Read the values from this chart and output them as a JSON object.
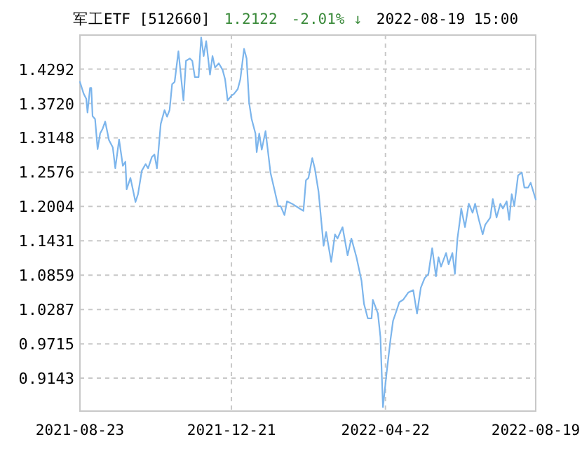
{
  "chart_data": {
    "type": "line",
    "title": "军工ETF [512660]",
    "annotations": [
      "1.2122",
      "-2.01% ↓",
      "2022-08-19 15:00"
    ],
    "x": [
      "2021-08-23",
      "2021-08-26",
      "2021-08-28",
      "2021-08-29",
      "2021-08-31",
      "2021-09-01",
      "2021-09-02",
      "2021-09-04",
      "2021-09-06",
      "2021-09-08",
      "2021-09-10",
      "2021-09-12",
      "2021-09-15",
      "2021-09-18",
      "2021-09-20",
      "2021-09-23",
      "2021-09-26",
      "2021-09-28",
      "2021-09-29",
      "2021-10-02",
      "2021-10-06",
      "2021-10-08",
      "2021-10-11",
      "2021-10-14",
      "2021-10-16",
      "2021-10-19",
      "2021-10-21",
      "2021-10-23",
      "2021-10-26",
      "2021-10-29",
      "2021-10-31",
      "2021-11-02",
      "2021-11-04",
      "2021-11-06",
      "2021-11-09",
      "2021-11-13",
      "2021-11-15",
      "2021-11-18",
      "2021-11-20",
      "2021-11-22",
      "2021-11-25",
      "2021-11-27",
      "2021-11-29",
      "2021-12-01",
      "2021-12-04",
      "2021-12-06",
      "2021-12-08",
      "2021-12-11",
      "2021-12-14",
      "2021-12-16",
      "2021-12-18",
      "2021-12-21",
      "2021-12-23",
      "2021-12-26",
      "2021-12-28",
      "2021-12-31",
      "2022-01-02",
      "2022-01-04",
      "2022-01-06",
      "2022-01-09",
      "2022-01-10",
      "2022-01-12",
      "2022-01-14",
      "2022-01-17",
      "2022-01-21",
      "2022-01-24",
      "2022-01-27",
      "2022-01-29",
      "2022-02-01",
      "2022-02-03",
      "2022-02-07",
      "2022-02-13",
      "2022-02-16",
      "2022-02-18",
      "2022-02-20",
      "2022-02-23",
      "2022-02-25",
      "2022-02-28",
      "2022-03-04",
      "2022-03-06",
      "2022-03-10",
      "2022-03-13",
      "2022-03-15",
      "2022-03-19",
      "2022-03-23",
      "2022-03-26",
      "2022-03-30",
      "2022-04-03",
      "2022-04-05",
      "2022-04-08",
      "2022-04-11",
      "2022-04-12",
      "2022-04-16",
      "2022-04-18",
      "2022-04-20",
      "2022-04-23",
      "2022-04-26",
      "2022-04-28",
      "2022-04-30",
      "2022-05-03",
      "2022-05-06",
      "2022-05-10",
      "2022-05-14",
      "2022-05-17",
      "2022-05-20",
      "2022-05-23",
      "2022-05-26",
      "2022-05-29",
      "2022-06-01",
      "2022-06-03",
      "2022-06-05",
      "2022-06-09",
      "2022-06-11",
      "2022-06-14",
      "2022-06-16",
      "2022-06-18",
      "2022-06-20",
      "2022-06-21",
      "2022-06-24",
      "2022-06-27",
      "2022-06-30",
      "2022-07-02",
      "2022-07-05",
      "2022-07-08",
      "2022-07-10",
      "2022-07-14",
      "2022-07-16",
      "2022-07-19",
      "2022-07-22",
      "2022-07-24",
      "2022-07-27",
      "2022-07-29",
      "2022-07-31",
      "2022-08-02",
      "2022-08-05",
      "2022-08-08",
      "2022-08-10",
      "2022-08-13",
      "2022-08-15",
      "2022-08-19"
    ],
    "series": [
      {
        "color": "#7cb5ec",
        "values": [
          1.408,
          1.388,
          1.38,
          1.357,
          1.398,
          1.398,
          1.351,
          1.346,
          1.296,
          1.322,
          1.33,
          1.342,
          1.311,
          1.299,
          1.264,
          1.312,
          1.268,
          1.275,
          1.229,
          1.248,
          1.208,
          1.221,
          1.26,
          1.271,
          1.264,
          1.283,
          1.287,
          1.264,
          1.338,
          1.361,
          1.35,
          1.361,
          1.404,
          1.408,
          1.459,
          1.377,
          1.443,
          1.447,
          1.443,
          1.416,
          1.416,
          1.482,
          1.451,
          1.476,
          1.42,
          1.451,
          1.432,
          1.439,
          1.428,
          1.412,
          1.377,
          1.385,
          1.388,
          1.396,
          1.412,
          1.463,
          1.447,
          1.373,
          1.346,
          1.322,
          1.291,
          1.322,
          1.295,
          1.326,
          1.256,
          1.229,
          1.201,
          1.201,
          1.186,
          1.209,
          1.205,
          1.197,
          1.193,
          1.244,
          1.248,
          1.281,
          1.264,
          1.225,
          1.135,
          1.158,
          1.108,
          1.154,
          1.147,
          1.166,
          1.119,
          1.147,
          1.116,
          1.077,
          1.038,
          1.014,
          1.014,
          1.045,
          1.022,
          0.983,
          0.866,
          0.925,
          0.979,
          1.01,
          1.022,
          1.041,
          1.045,
          1.057,
          1.061,
          1.022,
          1.065,
          1.081,
          1.088,
          1.131,
          1.084,
          1.116,
          1.1,
          1.123,
          1.104,
          1.123,
          1.088,
          1.147,
          1.178,
          1.197,
          1.166,
          1.205,
          1.19,
          1.205,
          1.178,
          1.154,
          1.17,
          1.182,
          1.213,
          1.182,
          1.205,
          1.197,
          1.209,
          1.178,
          1.221,
          1.201,
          1.252,
          1.257,
          1.232,
          1.232,
          1.24,
          1.212
        ]
      }
    ],
    "xlim": [
      "2021-08-23",
      "2022-08-19"
    ],
    "xticks": [
      "2021-08-23",
      "2021-12-21",
      "2022-04-22",
      "2022-08-19"
    ],
    "ylim": [
      0.8595,
      1.486
    ],
    "yticks": [
      0.9143,
      0.9715,
      1.0287,
      1.0859,
      1.1431,
      1.2004,
      1.2576,
      1.3148,
      {
        "value": 1.372,
        "label": "1.3720"
      },
      1.4292
    ],
    "grid": true,
    "marker": "none",
    "line_style": "solid"
  }
}
